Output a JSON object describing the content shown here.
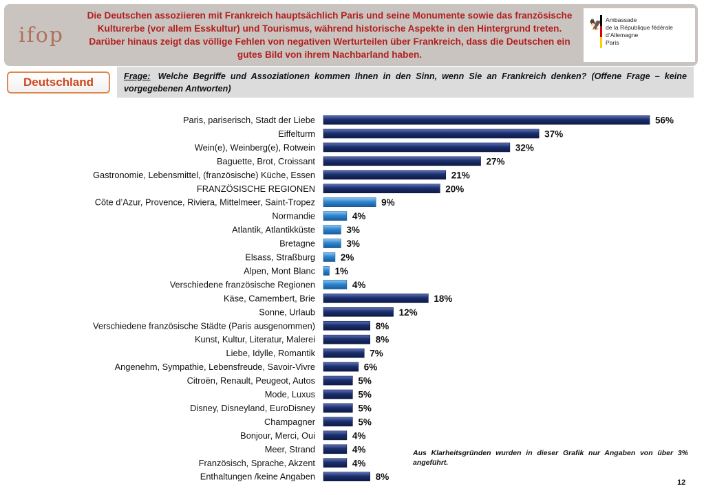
{
  "header": {
    "headline": "Die Deutschen assoziieren mit Frankreich hauptsächlich Paris und seine Monumente sowie das französische Kulturerbe (vor allem Esskultur) und Tourismus, während historische Aspekte in den Hintergrund treten. Darüber hinaus zeigt das völlige Fehlen von negativen Werturteilen über Frankreich, dass die Deutschen ein gutes Bild von ihrem Nachbarland haben.",
    "logo_text": "ifop",
    "embassy_lines": [
      "Ambassade",
      "de la République fédérale d’Allemagne",
      "Paris"
    ],
    "flag_colors": [
      "#000000",
      "#dd0000",
      "#ffce00"
    ]
  },
  "country_tag": "Deutschland",
  "question": {
    "prefix": "Frage:",
    "text": "Welche Begriffe und Assoziationen kommen Ihnen in den Sinn, wenn Sie an Frankreich denken? (Offene Frage – keine vorgegebenen Antworten)"
  },
  "chart_data": {
    "type": "bar",
    "orientation": "horizontal",
    "unit": "%",
    "xlim": [
      0,
      56
    ],
    "colors": {
      "main": "#1c2f6e",
      "sub": "#2e86d0"
    },
    "categories": [
      "Paris, pariserisch, Stadt der Liebe",
      "Eiffelturm",
      "Wein(e), Weinberg(e), Rotwein",
      "Baguette, Brot, Croissant",
      "Gastronomie, Lebensmittel, (französische) Küche, Essen",
      "FRANZÖSISCHE REGIONEN",
      "Côte d’Azur, Provence, Riviera, Mittelmeer, Saint-Tropez",
      "Normandie",
      "Atlantik, Atlantikküste",
      "Bretagne",
      "Elsass, Straßburg",
      "Alpen, Mont Blanc",
      "Verschiedene französische Regionen",
      "Käse, Camembert, Brie",
      "Sonne, Urlaub",
      "Verschiedene französische Städte (Paris ausgenommen)",
      "Kunst, Kultur, Literatur, Malerei",
      "Liebe, Idylle, Romantik",
      "Angenehm, Sympathie, Lebensfreude, Savoir-Vivre",
      "Citroën, Renault, Peugeot, Autos",
      "Mode, Luxus",
      "Disney, Disneyland, EuroDisney",
      "Champagner",
      "Bonjour, Merci, Oui",
      "Meer, Strand",
      "Französisch, Sprache, Akzent",
      "Enthaltungen /keine Angaben"
    ],
    "values": [
      56,
      37,
      32,
      27,
      21,
      20,
      9,
      4,
      3,
      3,
      2,
      1,
      4,
      18,
      12,
      8,
      8,
      7,
      6,
      5,
      5,
      5,
      5,
      4,
      4,
      4,
      8
    ],
    "value_labels": [
      "56%",
      "37%",
      "32%",
      "27%",
      "21%",
      "20%",
      "9%",
      "4%",
      "3%",
      "3%",
      "2%",
      "1%",
      "4%",
      "18%",
      "12%",
      "8%",
      "8%",
      "7%",
      "6%",
      "5%",
      "5%",
      "5%",
      "5%",
      "4%",
      "4%",
      "4%",
      "8%"
    ],
    "subcategory": [
      false,
      false,
      false,
      false,
      false,
      false,
      true,
      true,
      true,
      true,
      true,
      true,
      true,
      false,
      false,
      false,
      false,
      false,
      false,
      false,
      false,
      false,
      false,
      false,
      false,
      false,
      false
    ]
  },
  "note": "Aus Klarheitsgründen wurden in dieser Grafik nur Angaben von über 3% angeführt.",
  "page_number": "12"
}
